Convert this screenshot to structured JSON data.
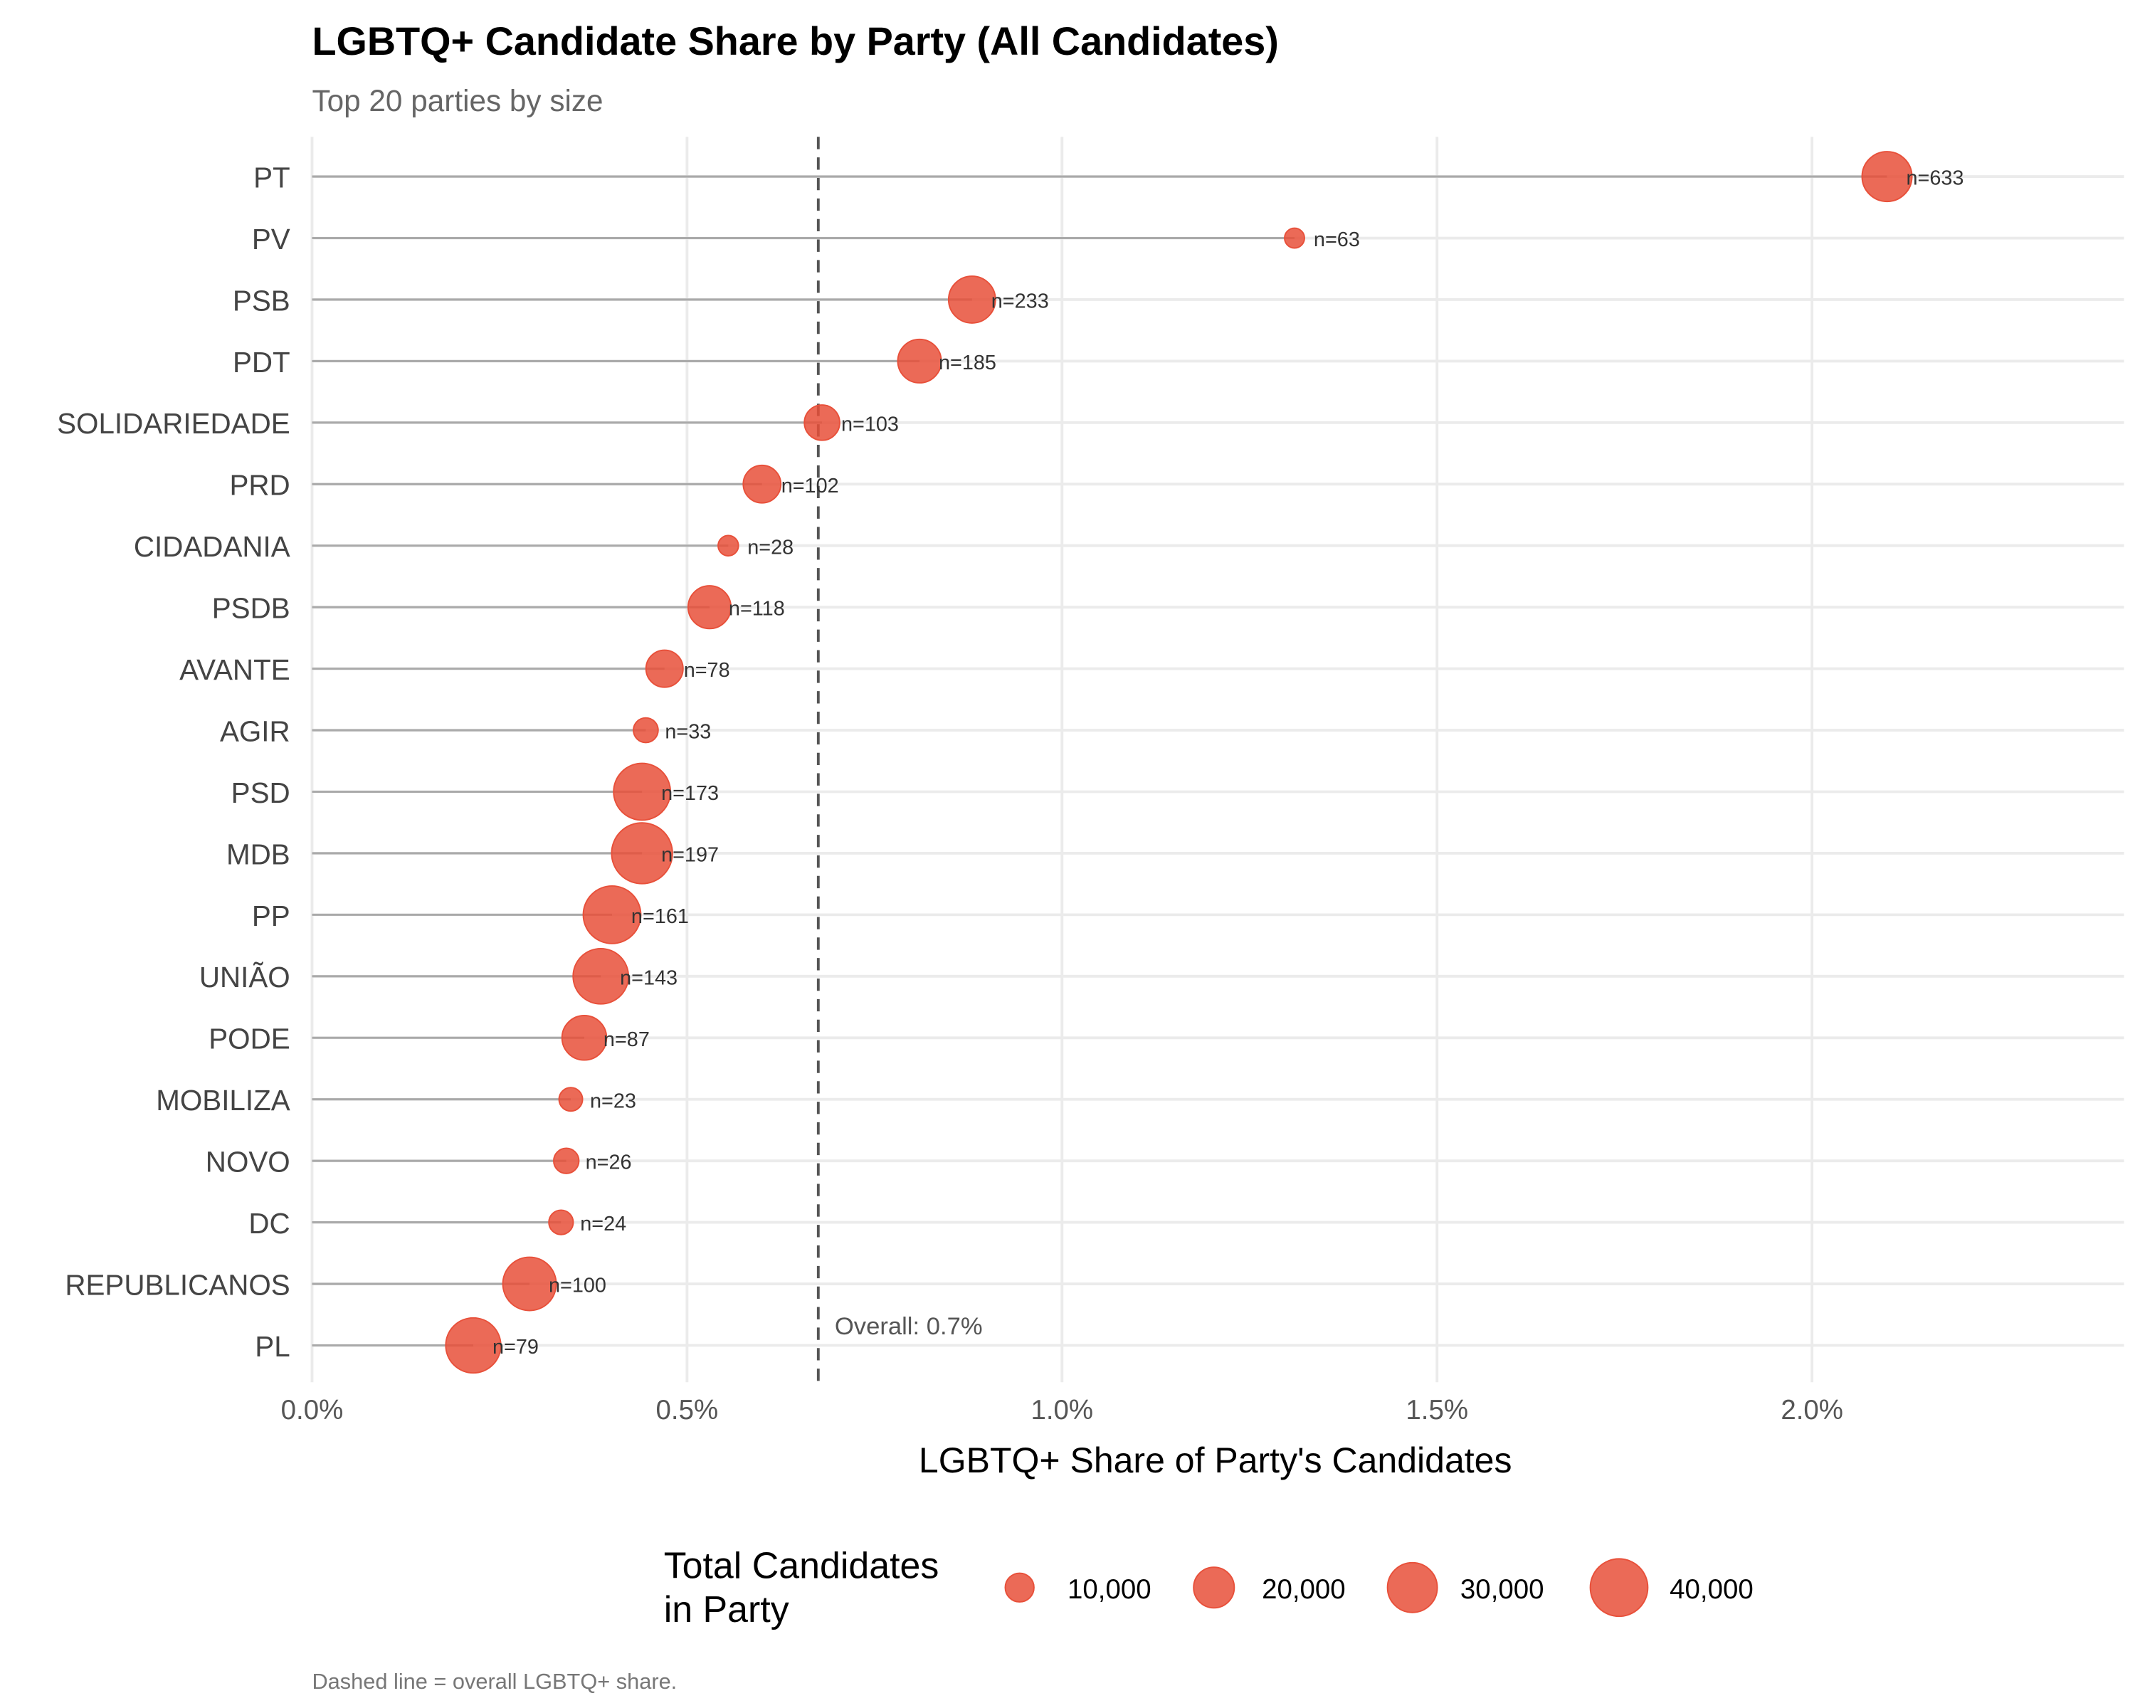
{
  "chart_data": {
    "type": "scatter",
    "subtype": "lollipop",
    "title": "LGBTQ+ Candidate Share by Party (All Candidates)",
    "subtitle": "Top 20 parties by size",
    "xlabel": "LGBTQ+ Share of Party's Candidates",
    "ylabel": "",
    "xlim": [
      0,
      2.42
    ],
    "x_ticks": [
      0,
      0.5,
      1.0,
      1.5,
      2.0
    ],
    "x_tick_labels": [
      "0.0%",
      "0.5%",
      "1.0%",
      "1.5%",
      "2.0%"
    ],
    "points": [
      {
        "party": "PT",
        "share_pct": 2.1,
        "n_label": "n=633",
        "total": 30100
      },
      {
        "party": "PV",
        "share_pct": 1.31,
        "n_label": "n=63",
        "total": 4800
      },
      {
        "party": "PSB",
        "share_pct": 0.88,
        "n_label": "n=233",
        "total": 26600
      },
      {
        "party": "PDT",
        "share_pct": 0.81,
        "n_label": "n=185",
        "total": 22900
      },
      {
        "party": "SOLIDARIEDADE",
        "share_pct": 0.68,
        "n_label": "n=103",
        "total": 15100
      },
      {
        "party": "PRD",
        "share_pct": 0.6,
        "n_label": "n=102",
        "total": 17100
      },
      {
        "party": "CIDADANIA",
        "share_pct": 0.555,
        "n_label": "n=28",
        "total": 5000
      },
      {
        "party": "PSDB",
        "share_pct": 0.53,
        "n_label": "n=118",
        "total": 22200
      },
      {
        "party": "AVANTE",
        "share_pct": 0.47,
        "n_label": "n=78",
        "total": 16600
      },
      {
        "party": "AGIR",
        "share_pct": 0.445,
        "n_label": "n=33",
        "total": 7400
      },
      {
        "party": "PSD",
        "share_pct": 0.44,
        "n_label": "n=173",
        "total": 39100
      },
      {
        "party": "MDB",
        "share_pct": 0.44,
        "n_label": "n=197",
        "total": 44800
      },
      {
        "party": "PP",
        "share_pct": 0.4,
        "n_label": "n=161",
        "total": 40100
      },
      {
        "party": "UNIÃO",
        "share_pct": 0.385,
        "n_label": "n=143",
        "total": 37100
      },
      {
        "party": "PODE",
        "share_pct": 0.363,
        "n_label": "n=87",
        "total": 24000
      },
      {
        "party": "MOBILIZA",
        "share_pct": 0.345,
        "n_label": "n=23",
        "total": 6700
      },
      {
        "party": "NOVO",
        "share_pct": 0.339,
        "n_label": "n=26",
        "total": 7700
      },
      {
        "party": "DC",
        "share_pct": 0.332,
        "n_label": "n=24",
        "total": 7200
      },
      {
        "party": "REPUBLICANOS",
        "share_pct": 0.29,
        "n_label": "n=100",
        "total": 34500
      },
      {
        "party": "PL",
        "share_pct": 0.215,
        "n_label": "n=79",
        "total": 36700
      }
    ],
    "reference_line": {
      "value_pct": 0.675,
      "label": "Overall: 0.7%",
      "style": "dashed"
    },
    "legend": {
      "title_line1": "Total Candidates",
      "title_line2": "in Party",
      "placement": "bottom",
      "values": [
        10000,
        20000,
        30000,
        40000
      ],
      "labels": [
        "10,000",
        "20,000",
        "30,000",
        "40,000"
      ]
    },
    "caption": "Dashed line = overall LGBTQ+ share.",
    "point_color": "#E8503A",
    "segment_color": "#AAAAAA"
  }
}
